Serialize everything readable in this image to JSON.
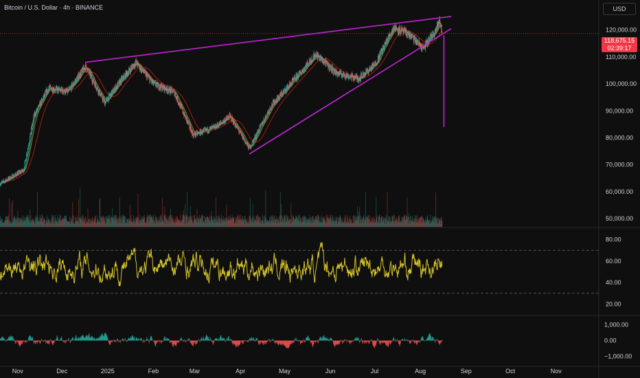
{
  "header": {
    "title": "Bitcoin / U.S. Dollar · 4h · BINANCE",
    "currency": "USD"
  },
  "price_badge": {
    "price": "118,675.15",
    "countdown": "02:39:17",
    "color": "#f23645"
  },
  "colors": {
    "background": "#0f0f0f",
    "up": "#26a69a",
    "down": "#ef5350",
    "trendline": "#c026d3",
    "ma_red": "#b71c1c",
    "ma_green": "#26a69a",
    "ma_olive": "#9e9d24",
    "rsi": "#d4c42a"
  },
  "chart_data": [
    {
      "type": "candlestick",
      "panel": "price",
      "yaxis_ticks": [
        "120,000.00",
        "110,000.00",
        "100,000.00",
        "90,000.00",
        "80,000.00",
        "70,000.00",
        "60,000.00",
        "50,000.00"
      ],
      "ylim": [
        47000,
        126000
      ],
      "xaxis_ticks": [
        "Nov",
        "Dec",
        "2025",
        "Feb",
        "Mar",
        "Apr",
        "May",
        "Jun",
        "Jul",
        "Aug",
        "Sep",
        "Oct",
        "Nov"
      ],
      "xlim": [
        "2024-10-20",
        "2025-11-30"
      ],
      "current_price": 118675.15,
      "key_points": [
        {
          "date": "2024-10-20",
          "close": 63000
        },
        {
          "date": "2024-11-05",
          "close": 68000
        },
        {
          "date": "2024-11-12",
          "close": 88000
        },
        {
          "date": "2024-11-22",
          "close": 98500
        },
        {
          "date": "2024-12-05",
          "close": 97000
        },
        {
          "date": "2024-12-17",
          "close": 106500
        },
        {
          "date": "2024-12-30",
          "close": 93000
        },
        {
          "date": "2025-01-07",
          "close": 99000
        },
        {
          "date": "2025-01-20",
          "close": 108000
        },
        {
          "date": "2025-02-01",
          "close": 100000
        },
        {
          "date": "2025-02-15",
          "close": 97000
        },
        {
          "date": "2025-02-28",
          "close": 81000
        },
        {
          "date": "2025-03-15",
          "close": 84000
        },
        {
          "date": "2025-03-25",
          "close": 88000
        },
        {
          "date": "2025-04-07",
          "close": 76000
        },
        {
          "date": "2025-04-22",
          "close": 92000
        },
        {
          "date": "2025-05-10",
          "close": 103000
        },
        {
          "date": "2025-05-22",
          "close": 111000
        },
        {
          "date": "2025-06-05",
          "close": 104000
        },
        {
          "date": "2025-06-20",
          "close": 102000
        },
        {
          "date": "2025-07-01",
          "close": 107000
        },
        {
          "date": "2025-07-14",
          "close": 121000
        },
        {
          "date": "2025-07-25",
          "close": 118000
        },
        {
          "date": "2025-08-03",
          "close": 113000
        },
        {
          "date": "2025-08-10",
          "close": 119000
        },
        {
          "date": "2025-08-14",
          "close": 123000
        },
        {
          "date": "2025-08-16",
          "close": 118675
        }
      ],
      "annotations": {
        "upper_trendline": [
          {
            "date": "2024-12-17",
            "price": 108000
          },
          {
            "date": "2025-08-22",
            "price": 125000
          }
        ],
        "lower_trendline": [
          {
            "date": "2025-04-07",
            "price": 74000
          },
          {
            "date": "2025-08-22",
            "price": 120500
          }
        ],
        "target_line": [
          {
            "date": "2025-08-17",
            "price": 118000
          },
          {
            "date": "2025-08-17",
            "price": 84000
          }
        ]
      }
    },
    {
      "type": "bar",
      "panel": "volume",
      "description_colors": [
        "#26a69a",
        "#ef5350"
      ]
    },
    {
      "type": "line",
      "panel": "rsi",
      "yaxis_ticks": [
        "80.00",
        "60.00",
        "40.00",
        "20.00"
      ],
      "ylim": [
        10,
        90
      ],
      "levels": [
        70,
        30
      ]
    },
    {
      "type": "bar",
      "panel": "histogram",
      "yaxis_ticks": [
        "1,000.00",
        "0.00",
        "−1,000.00"
      ],
      "ylim": [
        -1500,
        1500
      ]
    }
  ]
}
